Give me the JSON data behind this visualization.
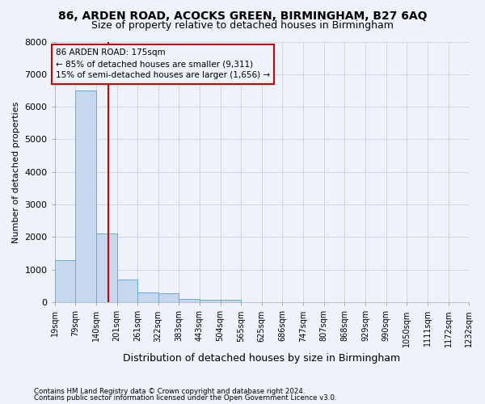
{
  "title": "86, ARDEN ROAD, ACOCKS GREEN, BIRMINGHAM, B27 6AQ",
  "subtitle": "Size of property relative to detached houses in Birmingham",
  "xlabel": "Distribution of detached houses by size in Birmingham",
  "ylabel": "Number of detached properties",
  "footnote1": "Contains HM Land Registry data © Crown copyright and database right 2024.",
  "footnote2": "Contains public sector information licensed under the Open Government Licence v3.0.",
  "bin_labels": [
    "19sqm",
    "79sqm",
    "140sqm",
    "201sqm",
    "261sqm",
    "322sqm",
    "383sqm",
    "443sqm",
    "504sqm",
    "565sqm",
    "625sqm",
    "686sqm",
    "747sqm",
    "807sqm",
    "868sqm",
    "929sqm",
    "990sqm",
    "1050sqm",
    "1111sqm",
    "1172sqm",
    "1232sqm"
  ],
  "bin_edges": [
    19,
    79,
    140,
    201,
    261,
    322,
    383,
    443,
    504,
    565,
    625,
    686,
    747,
    807,
    868,
    929,
    990,
    1050,
    1111,
    1172,
    1232
  ],
  "bar_values": [
    1300,
    6500,
    2100,
    700,
    300,
    270,
    110,
    80,
    80,
    0,
    0,
    0,
    0,
    0,
    0,
    0,
    0,
    0,
    0,
    0
  ],
  "bar_color": "#c5d8ee",
  "bar_edge_color": "#6aaad4",
  "grid_color": "#cdd5e8",
  "background_color": "#eef2fa",
  "vline_x": 175,
  "vline_color": "#cc0000",
  "ylim": [
    0,
    8000
  ],
  "annotation_line1": "86 ARDEN ROAD: 175sqm",
  "annotation_line2": "← 85% of detached houses are smaller (9,311)",
  "annotation_line3": "15% of semi-detached houses are larger (1,656) →",
  "annotation_box_color": "#cc0000",
  "title_fontsize": 10,
  "subtitle_fontsize": 9,
  "ylabel_fontsize": 8,
  "xlabel_fontsize": 9,
  "annot_fontsize": 7.5,
  "tick_fontsize": 7
}
